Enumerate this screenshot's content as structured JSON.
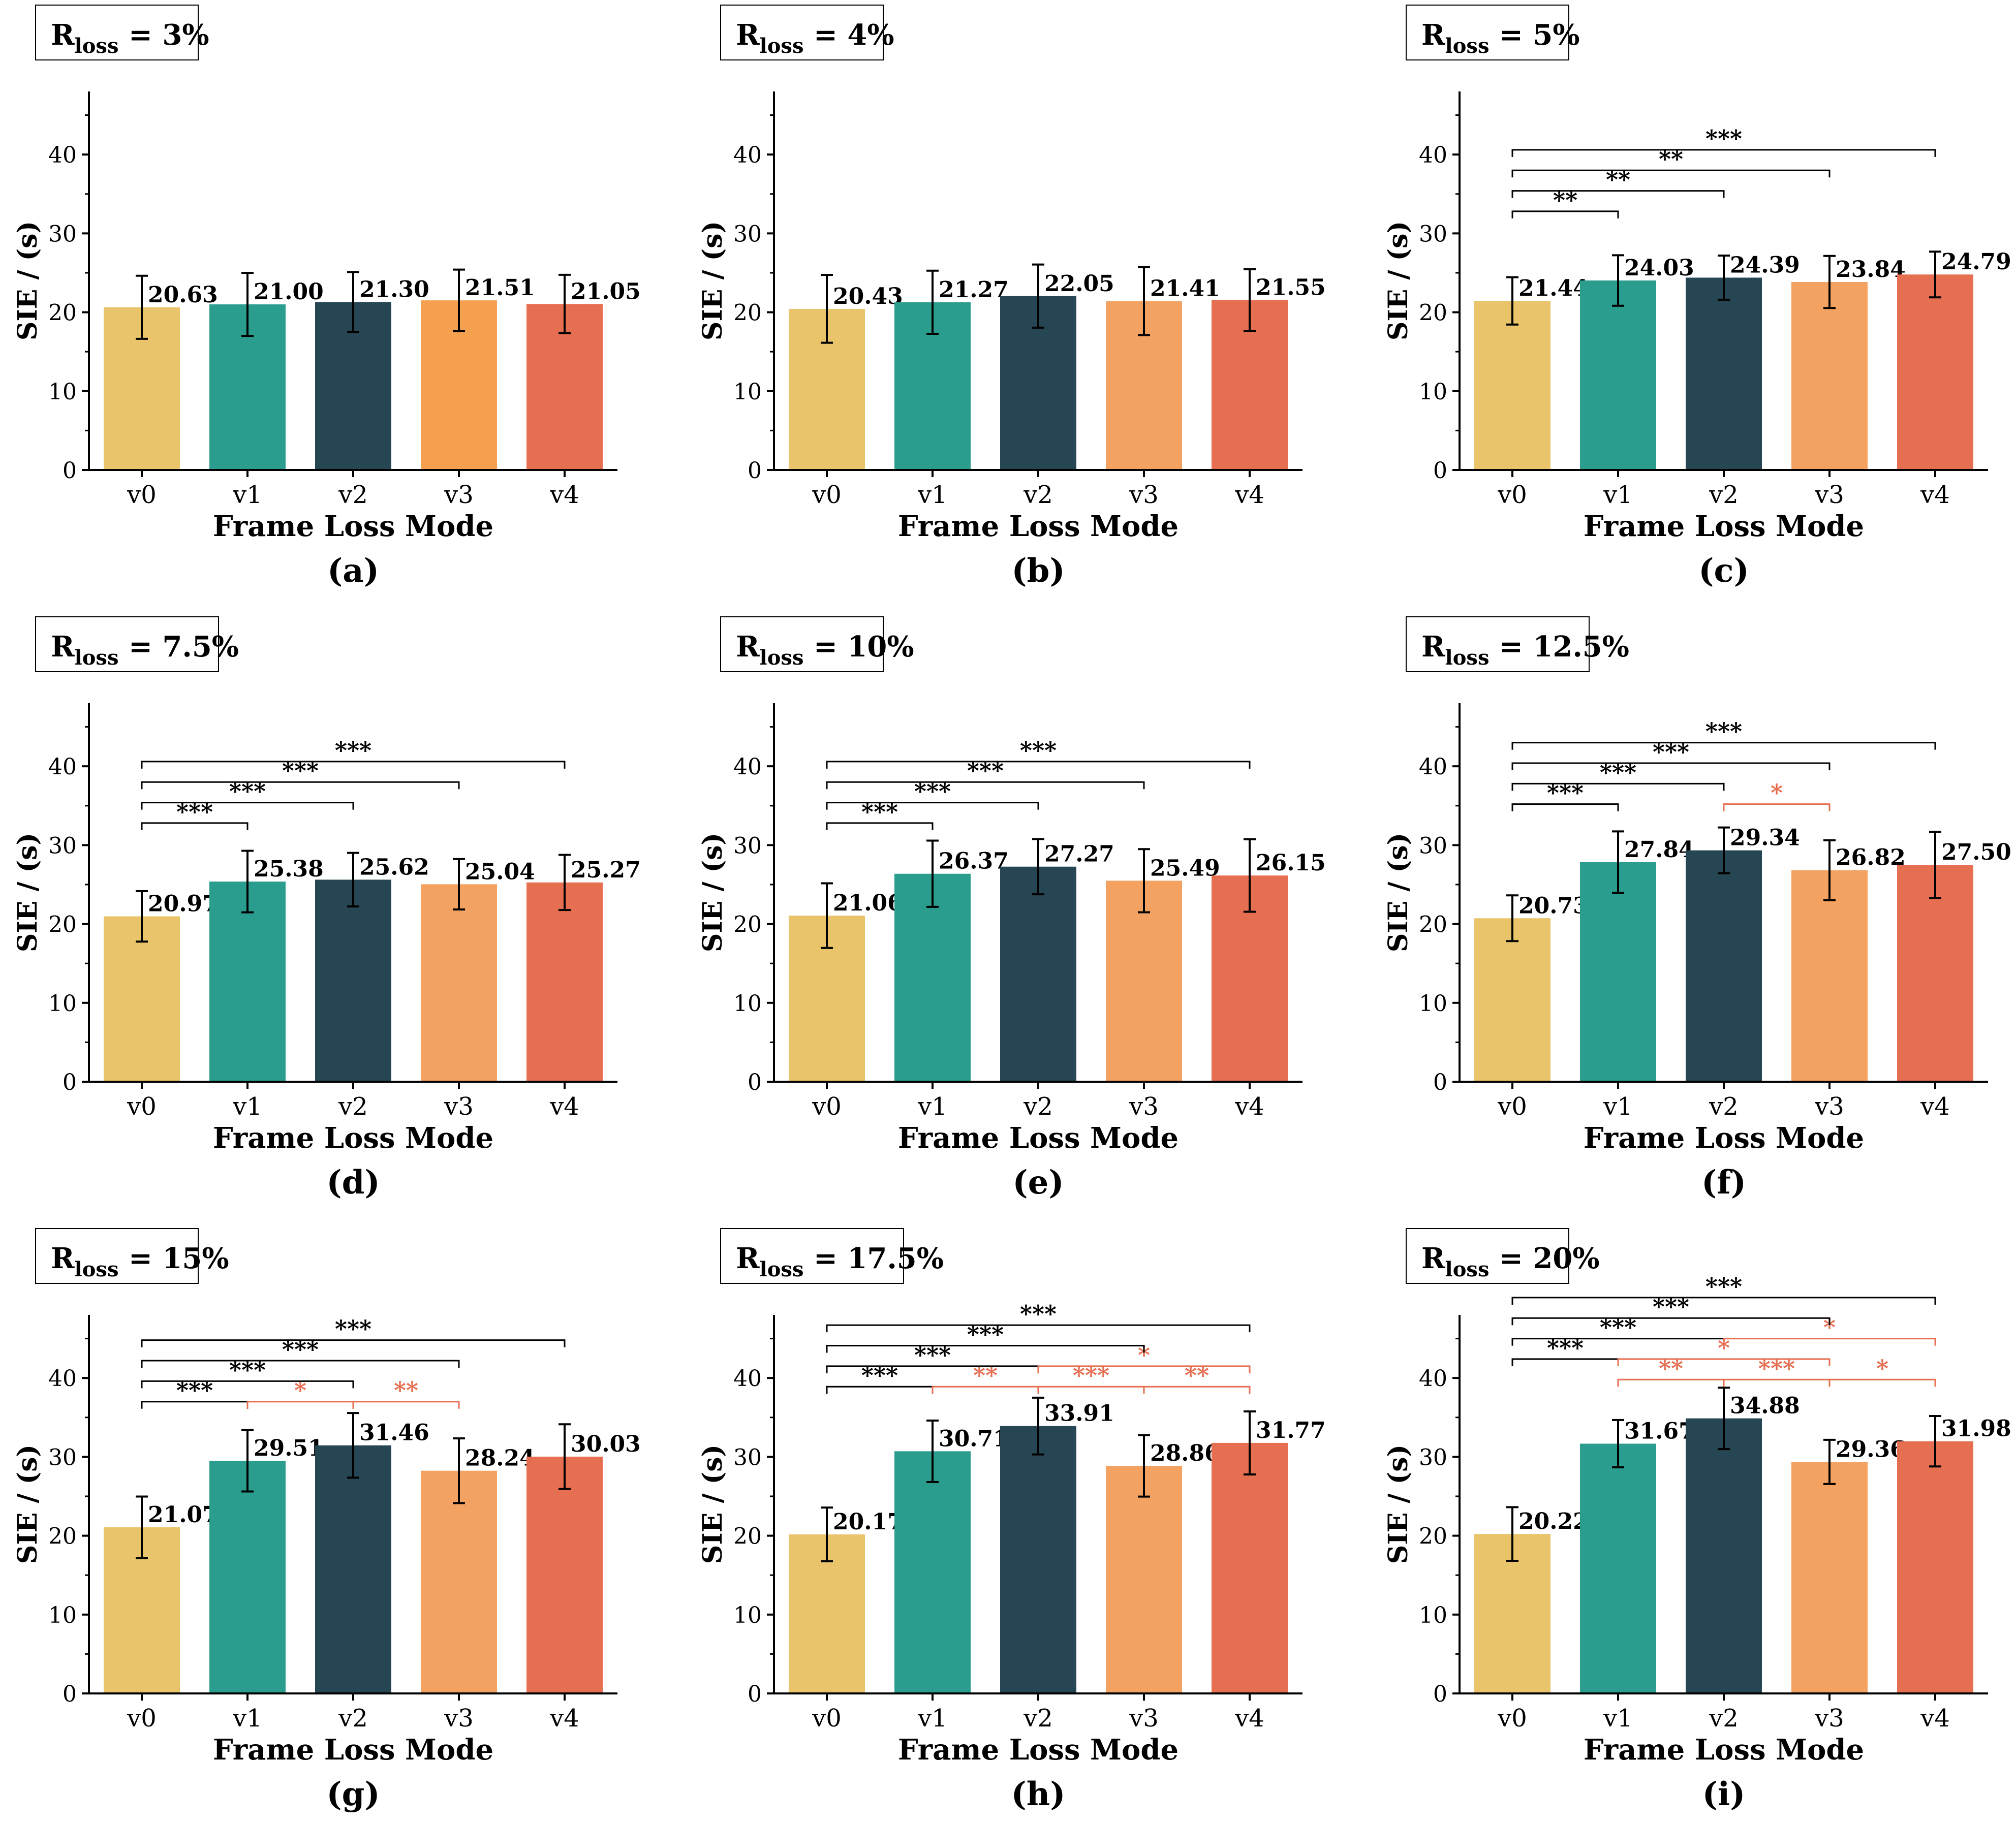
{
  "colors": {
    "v0": "#E9C46A",
    "v1": "#2A9D8F",
    "v2": "#264653",
    "v3": "#F4A261",
    "v3_alt": "#F4A04E",
    "v4": "#E76F51",
    "axis": "#000000",
    "sig_black": "#000000",
    "sig_red": "#E76F51"
  },
  "shared": {
    "xlabel": "Frame Loss Mode",
    "ylabel": "SIE / (s)",
    "categories": [
      "v0",
      "v1",
      "v2",
      "v3",
      "v4"
    ],
    "yticks": [
      0,
      10,
      20,
      30,
      40
    ],
    "ylim": [
      0,
      48
    ],
    "title_prefix": "R",
    "title_sub": "loss"
  },
  "chart_data": [
    {
      "type": "bar",
      "panel": "(a)",
      "title_value": " = 3%",
      "categories": [
        "v0",
        "v1",
        "v2",
        "v3",
        "v4"
      ],
      "values": [
        20.63,
        21.0,
        21.3,
        21.51,
        21.05
      ],
      "labels": [
        "20.63",
        "21.00",
        "21.30",
        "21.51",
        "21.05"
      ],
      "errors": [
        4.0,
        4.0,
        3.8,
        3.9,
        3.7
      ],
      "bar_colors": [
        "v0",
        "v1",
        "v2",
        "v3_alt",
        "v4"
      ],
      "xlabel": "Frame Loss Mode",
      "ylabel": "SIE / (s)",
      "ylim": [
        0,
        48
      ],
      "significance": []
    },
    {
      "type": "bar",
      "panel": "(b)",
      "title_value": " = 4%",
      "categories": [
        "v0",
        "v1",
        "v2",
        "v3",
        "v4"
      ],
      "values": [
        20.43,
        21.27,
        22.05,
        21.41,
        21.55
      ],
      "labels": [
        "20.43",
        "21.27",
        "22.05",
        "21.41",
        "21.55"
      ],
      "errors": [
        4.3,
        4.0,
        4.0,
        4.3,
        3.9
      ],
      "bar_colors": [
        "v0",
        "v1",
        "v2",
        "v3",
        "v4"
      ],
      "xlabel": "Frame Loss Mode",
      "ylabel": "SIE / (s)",
      "ylim": [
        0,
        48
      ],
      "significance": []
    },
    {
      "type": "bar",
      "panel": "(c)",
      "title_value": " = 5%",
      "categories": [
        "v0",
        "v1",
        "v2",
        "v3",
        "v4"
      ],
      "values": [
        21.44,
        24.03,
        24.39,
        23.84,
        24.79
      ],
      "labels": [
        "21.44",
        "24.03",
        "24.39",
        "23.84",
        "24.79"
      ],
      "errors": [
        3.0,
        3.2,
        2.8,
        3.3,
        2.9
      ],
      "bar_colors": [
        "v0",
        "v1",
        "v2",
        "v3",
        "v4"
      ],
      "xlabel": "Frame Loss Mode",
      "ylabel": "SIE / (s)",
      "ylim": [
        0,
        48
      ],
      "significance": [
        {
          "from": 0,
          "to": 1,
          "y": 32.8,
          "text": "**",
          "color": "black"
        },
        {
          "from": 0,
          "to": 2,
          "y": 35.4,
          "text": "**",
          "color": "black"
        },
        {
          "from": 0,
          "to": 3,
          "y": 38.0,
          "text": "**",
          "color": "black"
        },
        {
          "from": 0,
          "to": 4,
          "y": 40.6,
          "text": "***",
          "color": "black"
        }
      ]
    },
    {
      "type": "bar",
      "panel": "(d)",
      "title_value": " = 7.5%",
      "categories": [
        "v0",
        "v1",
        "v2",
        "v3",
        "v4"
      ],
      "values": [
        20.97,
        25.38,
        25.62,
        25.04,
        25.27
      ],
      "labels": [
        "20.97",
        "25.38",
        "25.62",
        "25.04",
        "25.27"
      ],
      "errors": [
        3.2,
        3.9,
        3.4,
        3.2,
        3.5
      ],
      "bar_colors": [
        "v0",
        "v1",
        "v2",
        "v3",
        "v4"
      ],
      "xlabel": "Frame Loss Mode",
      "ylabel": "SIE / (s)",
      "ylim": [
        0,
        48
      ],
      "significance": [
        {
          "from": 0,
          "to": 1,
          "y": 32.8,
          "text": "***",
          "color": "black"
        },
        {
          "from": 0,
          "to": 2,
          "y": 35.4,
          "text": "***",
          "color": "black"
        },
        {
          "from": 0,
          "to": 3,
          "y": 38.0,
          "text": "***",
          "color": "black"
        },
        {
          "from": 0,
          "to": 4,
          "y": 40.6,
          "text": "***",
          "color": "black"
        }
      ]
    },
    {
      "type": "bar",
      "panel": "(e)",
      "title_value": " = 10%",
      "categories": [
        "v0",
        "v1",
        "v2",
        "v3",
        "v4"
      ],
      "values": [
        21.06,
        26.37,
        27.27,
        25.49,
        26.15
      ],
      "labels": [
        "21.06",
        "26.37",
        "27.27",
        "25.49",
        "26.15"
      ],
      "errors": [
        4.1,
        4.2,
        3.5,
        4.0,
        4.6
      ],
      "bar_colors": [
        "v0",
        "v1",
        "v2",
        "v3",
        "v4"
      ],
      "xlabel": "Frame Loss Mode",
      "ylabel": "SIE / (s)",
      "ylim": [
        0,
        48
      ],
      "significance": [
        {
          "from": 0,
          "to": 1,
          "y": 32.8,
          "text": "***",
          "color": "black"
        },
        {
          "from": 0,
          "to": 2,
          "y": 35.4,
          "text": "***",
          "color": "black"
        },
        {
          "from": 0,
          "to": 3,
          "y": 38.0,
          "text": "***",
          "color": "black"
        },
        {
          "from": 0,
          "to": 4,
          "y": 40.6,
          "text": "***",
          "color": "black"
        }
      ]
    },
    {
      "type": "bar",
      "panel": "(f)",
      "title_value": " = 12.5%",
      "categories": [
        "v0",
        "v1",
        "v2",
        "v3",
        "v4"
      ],
      "values": [
        20.73,
        27.84,
        29.34,
        26.82,
        27.5
      ],
      "labels": [
        "20.73",
        "27.84",
        "29.34",
        "26.82",
        "27.50"
      ],
      "errors": [
        2.9,
        3.9,
        2.9,
        3.8,
        4.2
      ],
      "bar_colors": [
        "v0",
        "v1",
        "v2",
        "v3",
        "v4"
      ],
      "xlabel": "Frame Loss Mode",
      "ylabel": "SIE / (s)",
      "ylim": [
        0,
        48
      ],
      "significance": [
        {
          "from": 0,
          "to": 1,
          "y": 35.2,
          "text": "***",
          "color": "black"
        },
        {
          "from": 2,
          "to": 3,
          "y": 35.2,
          "text": "*",
          "color": "red"
        },
        {
          "from": 0,
          "to": 2,
          "y": 37.8,
          "text": "***",
          "color": "black"
        },
        {
          "from": 0,
          "to": 3,
          "y": 40.4,
          "text": "***",
          "color": "black"
        },
        {
          "from": 0,
          "to": 4,
          "y": 43.0,
          "text": "***",
          "color": "black"
        }
      ]
    },
    {
      "type": "bar",
      "panel": "(g)",
      "title_value": " = 15%",
      "categories": [
        "v0",
        "v1",
        "v2",
        "v3",
        "v4"
      ],
      "values": [
        21.07,
        29.51,
        31.46,
        28.24,
        30.03
      ],
      "labels": [
        "21.07",
        "29.51",
        "31.46",
        "28.24",
        "30.03"
      ],
      "errors": [
        3.9,
        3.9,
        4.1,
        4.1,
        4.1
      ],
      "bar_colors": [
        "v0",
        "v1",
        "v2",
        "v3",
        "v4"
      ],
      "xlabel": "Frame Loss Mode",
      "ylabel": "SIE / (s)",
      "ylim": [
        0,
        48
      ],
      "significance": [
        {
          "from": 0,
          "to": 1,
          "y": 37.0,
          "text": "***",
          "color": "black"
        },
        {
          "from": 1,
          "to": 2,
          "y": 37.0,
          "text": "*",
          "color": "red"
        },
        {
          "from": 2,
          "to": 3,
          "y": 37.0,
          "text": "**",
          "color": "red"
        },
        {
          "from": 0,
          "to": 2,
          "y": 39.6,
          "text": "***",
          "color": "black"
        },
        {
          "from": 0,
          "to": 3,
          "y": 42.2,
          "text": "***",
          "color": "black"
        },
        {
          "from": 0,
          "to": 4,
          "y": 44.8,
          "text": "***",
          "color": "black"
        }
      ]
    },
    {
      "type": "bar",
      "panel": "(h)",
      "title_value": " = 17.5%",
      "categories": [
        "v0",
        "v1",
        "v2",
        "v3",
        "v4"
      ],
      "values": [
        20.17,
        30.71,
        33.91,
        28.86,
        31.77
      ],
      "labels": [
        "20.17",
        "30.71",
        "33.91",
        "28.86",
        "31.77"
      ],
      "errors": [
        3.4,
        3.9,
        3.6,
        3.9,
        4.0
      ],
      "bar_colors": [
        "v0",
        "v1",
        "v2",
        "v3",
        "v4"
      ],
      "xlabel": "Frame Loss Mode",
      "ylabel": "SIE / (s)",
      "ylim": [
        0,
        48
      ],
      "significance": [
        {
          "from": 0,
          "to": 1,
          "y": 38.9,
          "text": "***",
          "color": "black"
        },
        {
          "from": 1,
          "to": 2,
          "y": 38.9,
          "text": "**",
          "color": "red"
        },
        {
          "from": 2,
          "to": 3,
          "y": 38.9,
          "text": "***",
          "color": "red"
        },
        {
          "from": 3,
          "to": 4,
          "y": 38.9,
          "text": "**",
          "color": "red"
        },
        {
          "from": 0,
          "to": 2,
          "y": 41.5,
          "text": "***",
          "color": "black"
        },
        {
          "from": 2,
          "to": 4,
          "y": 41.5,
          "text": "*",
          "color": "red"
        },
        {
          "from": 0,
          "to": 3,
          "y": 44.1,
          "text": "***",
          "color": "black"
        },
        {
          "from": 0,
          "to": 4,
          "y": 46.7,
          "text": "***",
          "color": "black"
        }
      ]
    },
    {
      "type": "bar",
      "panel": "(i)",
      "title_value": " = 20%",
      "categories": [
        "v0",
        "v1",
        "v2",
        "v3",
        "v4"
      ],
      "values": [
        20.22,
        31.67,
        34.88,
        29.36,
        31.98
      ],
      "labels": [
        "20.22",
        "31.67",
        "34.88",
        "29.36",
        "31.98"
      ],
      "errors": [
        3.4,
        3.0,
        3.9,
        2.8,
        3.2
      ],
      "bar_colors": [
        "v0",
        "v1",
        "v2",
        "v3",
        "v4"
      ],
      "xlabel": "Frame Loss Mode",
      "ylabel": "SIE / (s)",
      "ylim": [
        0,
        48
      ],
      "significance": [
        {
          "from": 1,
          "to": 2,
          "y": 39.8,
          "text": "**",
          "color": "red"
        },
        {
          "from": 2,
          "to": 3,
          "y": 39.8,
          "text": "***",
          "color": "red"
        },
        {
          "from": 3,
          "to": 4,
          "y": 39.8,
          "text": "*",
          "color": "red"
        },
        {
          "from": 0,
          "to": 1,
          "y": 42.4,
          "text": "***",
          "color": "black"
        },
        {
          "from": 1,
          "to": 3,
          "y": 42.4,
          "text": "*",
          "color": "red"
        },
        {
          "from": 0,
          "to": 2,
          "y": 45.0,
          "text": "***",
          "color": "black"
        },
        {
          "from": 2,
          "to": 4,
          "y": 45.0,
          "text": "*",
          "color": "red"
        },
        {
          "from": 0,
          "to": 3,
          "y": 47.6,
          "text": "***",
          "color": "black"
        },
        {
          "from": 0,
          "to": 4,
          "y": 50.2,
          "text": "***",
          "color": "black"
        }
      ]
    }
  ]
}
